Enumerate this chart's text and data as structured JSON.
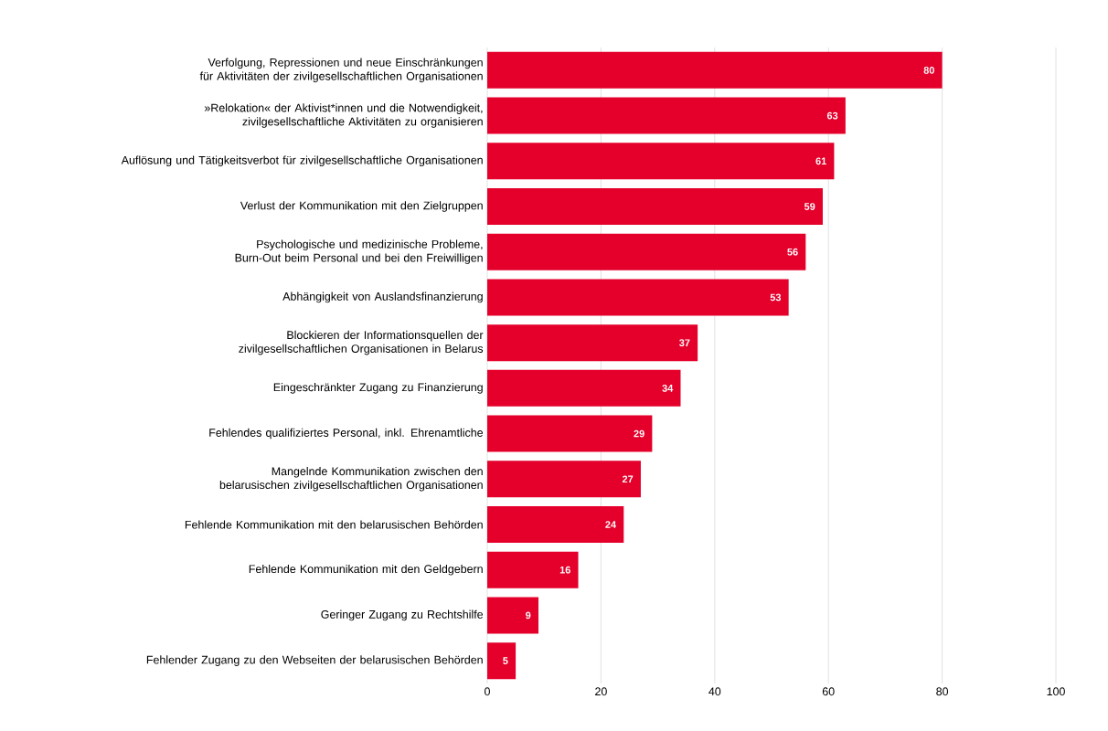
{
  "chart_data": {
    "type": "bar",
    "orientation": "horizontal",
    "categories": [
      "Verfolgung, Repressionen und neue Einschränkungen für Aktivitäten der zivilgesellschaftlichen Organisationen",
      "»Relokation« der Aktivist*innen und die Notwendigkeit, zivilgesellschaftliche Aktivitäten zu organisieren",
      "Auflösung und Tätigkeitsverbot für zivilgesellschaftliche Organisationen",
      "Verlust der Kommunikation mit den Zielgruppen",
      "Psychologische und medizinische Probleme, Burn-Out beim Personal und bei den Freiwilligen",
      "Abhängigkeit von Auslandsfinanzierung",
      "Blockieren der Informationsquellen der zivilgesellschaftlichen Organisationen in Belarus",
      "Eingeschränkter Zugang zu Finanzierung",
      "Fehlendes qualifiziertes Personal, inkl. Ehrenamtliche",
      "Mangelnde Kommunikation zwischen den belarusischen zivilgesellschaftlichen Organisationen",
      "Fehlende Kommunikation mit den belarusischen Behörden",
      "Fehlende Kommunikation mit den Geldgebern",
      "Geringer Zugang zu Rechtshilfe",
      "Fehlender Zugang zu den Webseiten der belarusischen Behörden"
    ],
    "values": [
      80,
      63,
      61,
      59,
      56,
      53,
      37,
      34,
      29,
      27,
      24,
      16,
      9,
      5
    ],
    "color": "#e4002b",
    "xlim": [
      0,
      100
    ],
    "xticks": [
      0,
      20,
      40,
      60,
      80,
      100
    ],
    "grid": "x",
    "data_labels": true
  }
}
